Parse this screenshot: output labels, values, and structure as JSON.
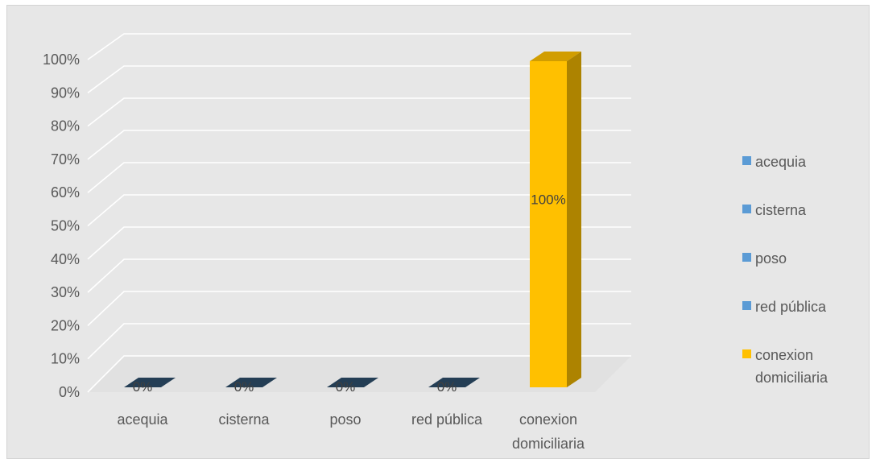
{
  "chart_data": {
    "type": "bar",
    "categories": [
      "acequia",
      "cisterna",
      "poso",
      "red pública",
      "conexion domiciliaria"
    ],
    "values": [
      0,
      0,
      0,
      0,
      100
    ],
    "data_labels": [
      "0%",
      "0%",
      "0%",
      "0%",
      "100%"
    ],
    "ylim": [
      0,
      100
    ],
    "y_ticks": [
      "0%",
      "10%",
      "20%",
      "30%",
      "40%",
      "50%",
      "60%",
      "70%",
      "80%",
      "90%",
      "100%"
    ],
    "grid": true,
    "three_d": true,
    "legend": {
      "placement": "right",
      "entries": [
        "acequia",
        "cisterna",
        "poso",
        "red pública",
        "conexion domiciliaria"
      ]
    },
    "colors": {
      "blue": "#5b9bd5",
      "orange": "#ffc000",
      "background": "#e7e7e7",
      "grid": "#ffffff"
    },
    "series_colors": [
      "#5b9bd5",
      "#5b9bd5",
      "#5b9bd5",
      "#5b9bd5",
      "#ffc000"
    ]
  }
}
